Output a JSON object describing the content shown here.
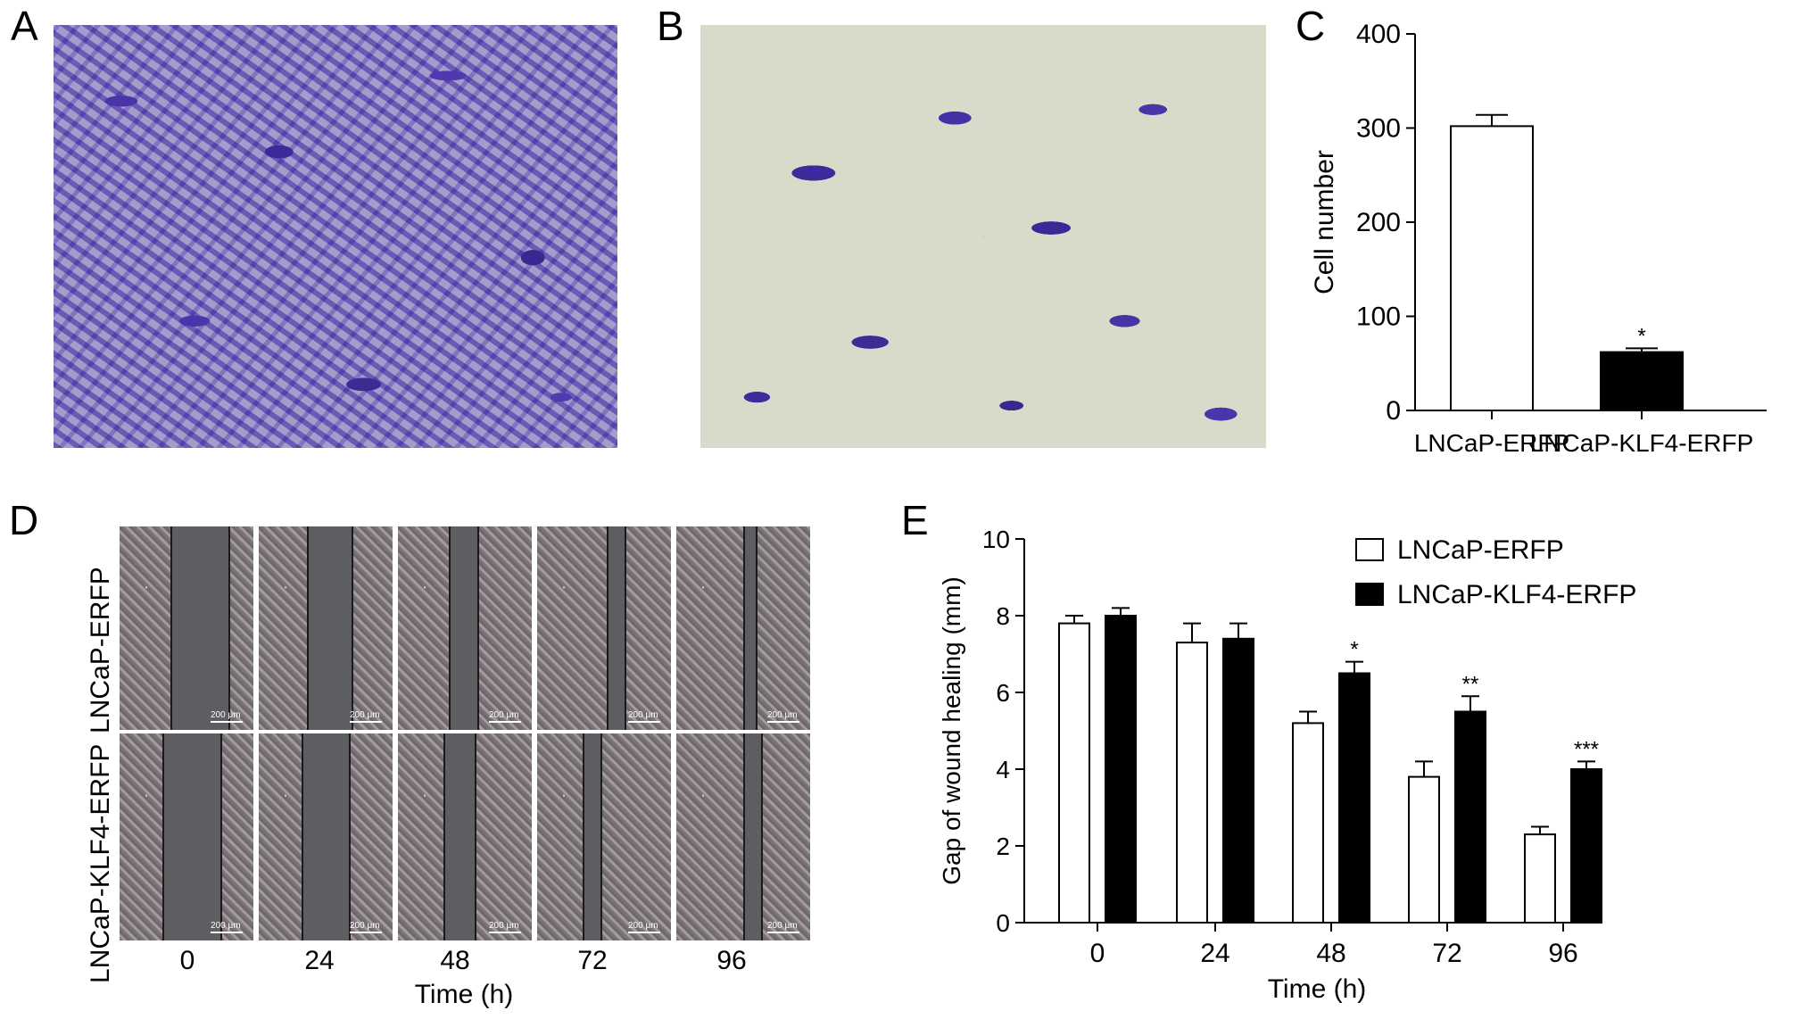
{
  "panel_letters": {
    "a": "A",
    "b": "B",
    "c": "C",
    "d": "D",
    "e": "E"
  },
  "panel_d": {
    "row_labels": [
      "LNCaP-ERFP",
      "LNCaP-KLF4-ERFP"
    ],
    "time_labels": [
      "0",
      "24",
      "48",
      "72",
      "96"
    ],
    "xlabel": "Time (h)",
    "scale_bar": "200 μm"
  },
  "chart_data": [
    {
      "id": "C",
      "type": "bar",
      "categories": [
        "LNCaP-ERFP",
        "LNCaP-KLF4-ERFP"
      ],
      "values": [
        302,
        62
      ],
      "errors": [
        12,
        4
      ],
      "fills": [
        "#ffffff",
        "#000000"
      ],
      "annotations": [
        "",
        "*"
      ],
      "xlabel": "",
      "ylabel": "Cell number",
      "ylim": [
        0,
        400
      ],
      "yticks": [
        0,
        100,
        200,
        300,
        400
      ]
    },
    {
      "id": "E",
      "type": "bar",
      "categories": [
        "0",
        "24",
        "48",
        "72",
        "96"
      ],
      "series": [
        {
          "name": "LNCaP-ERFP",
          "values": [
            7.8,
            7.3,
            5.2,
            3.8,
            2.3
          ],
          "errors": [
            0.2,
            0.5,
            0.3,
            0.4,
            0.2
          ],
          "fill": "#ffffff"
        },
        {
          "name": "LNCaP-KLF4-ERFP",
          "values": [
            8.0,
            7.4,
            6.5,
            5.5,
            4.0
          ],
          "errors": [
            0.2,
            0.4,
            0.3,
            0.4,
            0.2
          ],
          "fill": "#000000"
        }
      ],
      "annotations": [
        "",
        "",
        "*",
        "**",
        "***"
      ],
      "xlabel": "Time (h)",
      "ylabel": "Gap of wound healing (mm)",
      "ylim": [
        0,
        10
      ],
      "yticks": [
        0,
        2,
        4,
        6,
        8,
        10
      ],
      "legend": "top-right"
    }
  ]
}
